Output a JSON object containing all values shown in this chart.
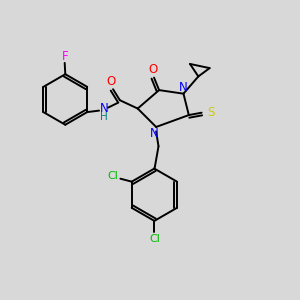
{
  "background_color": "#d8d8d8",
  "bond_color": "#000000",
  "atom_colors": {
    "N": "#0000ff",
    "O": "#ff0000",
    "S": "#cccc00",
    "F": "#ff00ff",
    "Cl": "#00bb00",
    "H": "#008080",
    "C": "#000000"
  },
  "figsize": [
    3.0,
    3.0
  ],
  "dpi": 100
}
